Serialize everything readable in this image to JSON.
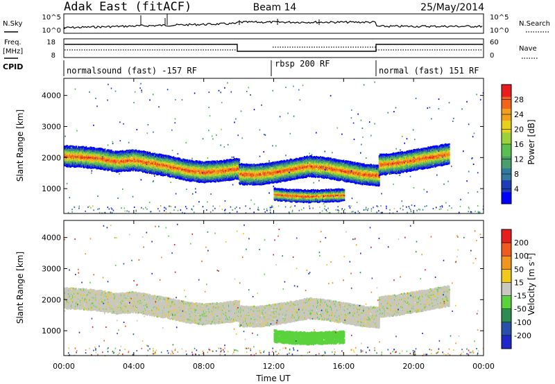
{
  "header": {
    "site": "Adak East (fitACF)",
    "beam": "Beam 14",
    "date": "25/May/2014"
  },
  "strips": {
    "nsky_label": "N.Sky",
    "nsky_ticks": [
      "10^5",
      "10^0"
    ],
    "nsearch_label": "N.Search",
    "nsearch_ticks": [
      "10^5",
      "10^0"
    ],
    "freq_label_1": "Freq.",
    "freq_label_2": "[MHz]",
    "freq_ticks": [
      "18",
      "8"
    ],
    "nave_label": "Nave",
    "nave_ticks": [
      "60",
      "0"
    ],
    "cpid_label": "CPID",
    "cpid_segments": [
      {
        "label": "normalsound (fast) -157 RF",
        "start_h": 0,
        "end_h": 12
      },
      {
        "label": "rbsp 200 RF",
        "start_h": 12,
        "end_h": 18
      },
      {
        "label": "normal (fast) 151 RF",
        "start_h": 18,
        "end_h": 24
      }
    ]
  },
  "chart_data": [
    {
      "type": "heatmap",
      "title": "",
      "xlabel": "",
      "ylabel": "Slant Range [km]",
      "xlim_hours": [
        0,
        24
      ],
      "ylim_km": [
        200,
        4550
      ],
      "yticks": [
        "1000",
        "2000",
        "3000",
        "4000"
      ],
      "colorbar": {
        "label": "Power [dB]",
        "ticks": [
          "28",
          "24",
          "20",
          "16",
          "12",
          "8",
          "4"
        ],
        "colors": [
          "#0000ff",
          "#1e3cb4",
          "#3278a0",
          "#4a9e6a",
          "#5abe50",
          "#9ad23c",
          "#e6d21e",
          "#f0a01e",
          "#f0641e",
          "#e61e1e"
        ]
      },
      "echo_bands": [
        {
          "name": "main",
          "points_h_km": [
            [
              0,
              2080
            ],
            [
              1,
              2050
            ],
            [
              2,
              2000
            ],
            [
              3,
              1900
            ],
            [
              4,
              1950
            ],
            [
              5,
              1850
            ],
            [
              6,
              1750
            ],
            [
              7,
              1620
            ],
            [
              8,
              1560
            ],
            [
              9,
              1600
            ],
            [
              10,
              1680
            ]
          ]
        },
        {
          "name": "main",
          "points_h_km": [
            [
              10,
              1500
            ],
            [
              11,
              1480
            ],
            [
              12,
              1550
            ],
            [
              13,
              1650
            ],
            [
              14,
              1750
            ],
            [
              15,
              1700
            ],
            [
              16,
              1600
            ],
            [
              17,
              1500
            ],
            [
              18,
              1450
            ]
          ]
        },
        {
          "name": "lower",
          "points_h_km": [
            [
              12,
              850
            ],
            [
              13,
              800
            ],
            [
              14,
              780
            ],
            [
              15,
              800
            ],
            [
              16,
              820
            ]
          ]
        },
        {
          "name": "main",
          "points_h_km": [
            [
              18,
              1800
            ],
            [
              19,
              1850
            ],
            [
              20,
              1950
            ],
            [
              21,
              2050
            ],
            [
              22,
              2150
            ]
          ]
        }
      ]
    },
    {
      "type": "heatmap",
      "title": "",
      "xlabel": "Time UT",
      "ylabel": "Slant Range [km]",
      "xlim_hours": [
        0,
        24
      ],
      "ylim_km": [
        200,
        4550
      ],
      "xticks": [
        "00:00",
        "04:00",
        "08:00",
        "12:00",
        "16:00",
        "20:00",
        "00:00"
      ],
      "yticks": [
        "1000",
        "2000",
        "3000",
        "4000"
      ],
      "colorbar": {
        "label": "Velocity [m s^-1]",
        "ticks": [
          "200",
          "100",
          "50",
          "15",
          "-15",
          "-50",
          "-100",
          "-200"
        ],
        "colors": [
          "#1e28c8",
          "#2850aa",
          "#2d8c50",
          "#5ad23c",
          "#c8c8c0",
          "#f0c81e",
          "#f0961e",
          "#f05a1e",
          "#e61e1e"
        ]
      }
    }
  ]
}
